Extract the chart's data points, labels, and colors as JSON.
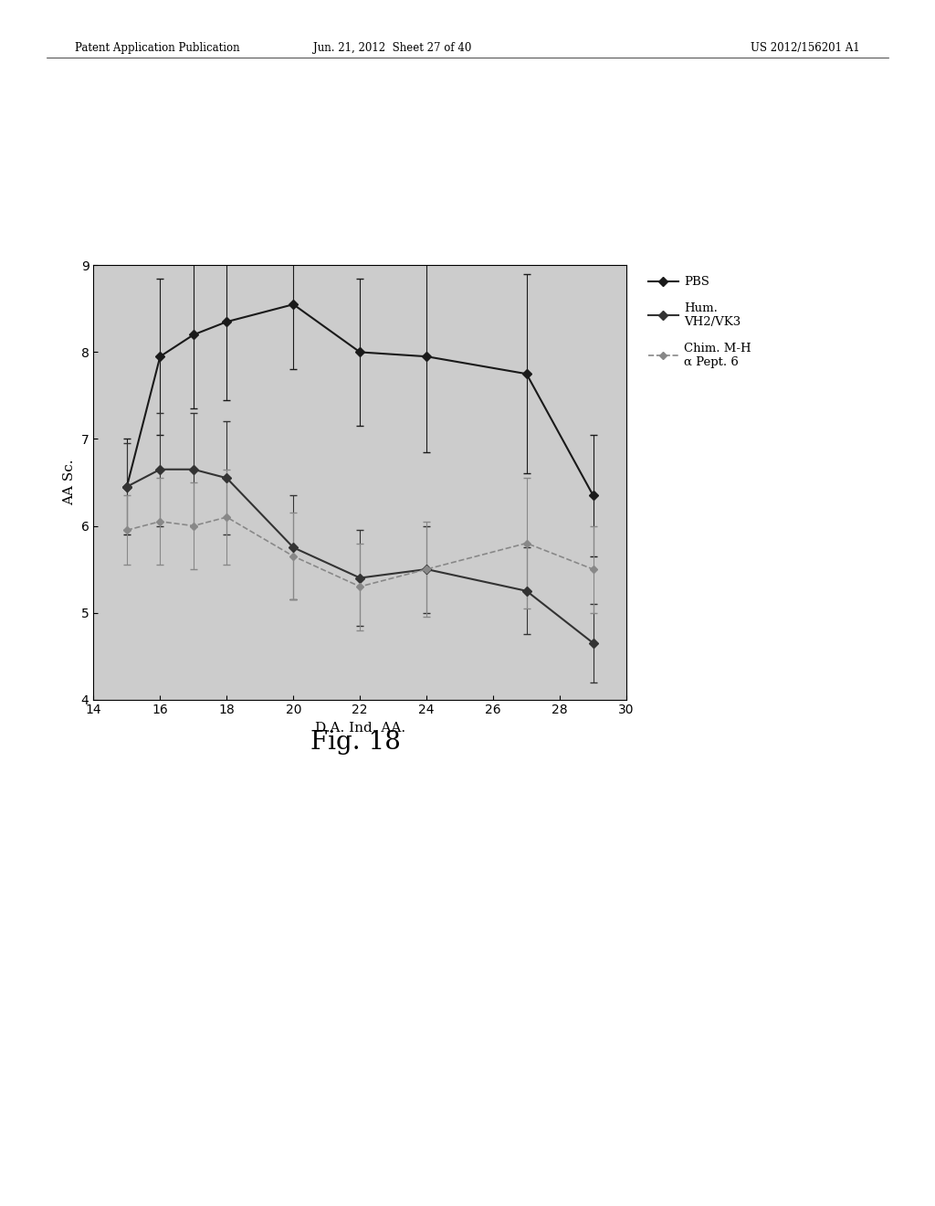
{
  "title": "Fig. 18",
  "xlabel": "D.A. Ind. AA.",
  "ylabel": "AA Sc.",
  "xlim": [
    14,
    30
  ],
  "ylim": [
    4,
    9
  ],
  "xticks": [
    14,
    16,
    18,
    20,
    22,
    24,
    26,
    28,
    30
  ],
  "yticks": [
    4,
    5,
    6,
    7,
    8,
    9
  ],
  "series": [
    {
      "label": "PBS",
      "x": [
        15,
        16,
        17,
        18,
        20,
        22,
        24,
        27,
        29
      ],
      "y": [
        6.45,
        7.95,
        8.2,
        8.35,
        8.55,
        8.0,
        7.95,
        7.75,
        6.35
      ],
      "yerr": [
        0.55,
        0.9,
        0.85,
        0.9,
        0.75,
        0.85,
        1.1,
        1.15,
        0.7
      ],
      "color": "#1a1a1a",
      "marker": "D",
      "linestyle": "-",
      "linewidth": 1.5,
      "markersize": 5
    },
    {
      "label": "Hum.\nVH2/VK3",
      "x": [
        15,
        16,
        17,
        18,
        20,
        22,
        24,
        27,
        29
      ],
      "y": [
        6.45,
        6.65,
        6.65,
        6.55,
        5.75,
        5.4,
        5.5,
        5.25,
        4.65
      ],
      "yerr": [
        0.5,
        0.65,
        0.65,
        0.65,
        0.6,
        0.55,
        0.5,
        0.5,
        0.45
      ],
      "color": "#333333",
      "marker": "D",
      "linestyle": "-",
      "linewidth": 1.5,
      "markersize": 5
    },
    {
      "label": "Chim. M-H\nα Pept. 6",
      "x": [
        15,
        16,
        17,
        18,
        20,
        22,
        24,
        27,
        29
      ],
      "y": [
        5.95,
        6.05,
        6.0,
        6.1,
        5.65,
        5.3,
        5.5,
        5.8,
        5.5
      ],
      "yerr": [
        0.4,
        0.5,
        0.5,
        0.55,
        0.5,
        0.5,
        0.55,
        0.75,
        0.5
      ],
      "color": "#888888",
      "marker": "D",
      "linestyle": "--",
      "linewidth": 1.2,
      "markersize": 4
    }
  ],
  "header_left": "Patent Application Publication",
  "header_mid": "Jun. 21, 2012  Sheet 27 of 40",
  "header_right": "US 2012/156201 A1",
  "background_color": "#ffffff",
  "plot_bg_color": "#cccccc"
}
